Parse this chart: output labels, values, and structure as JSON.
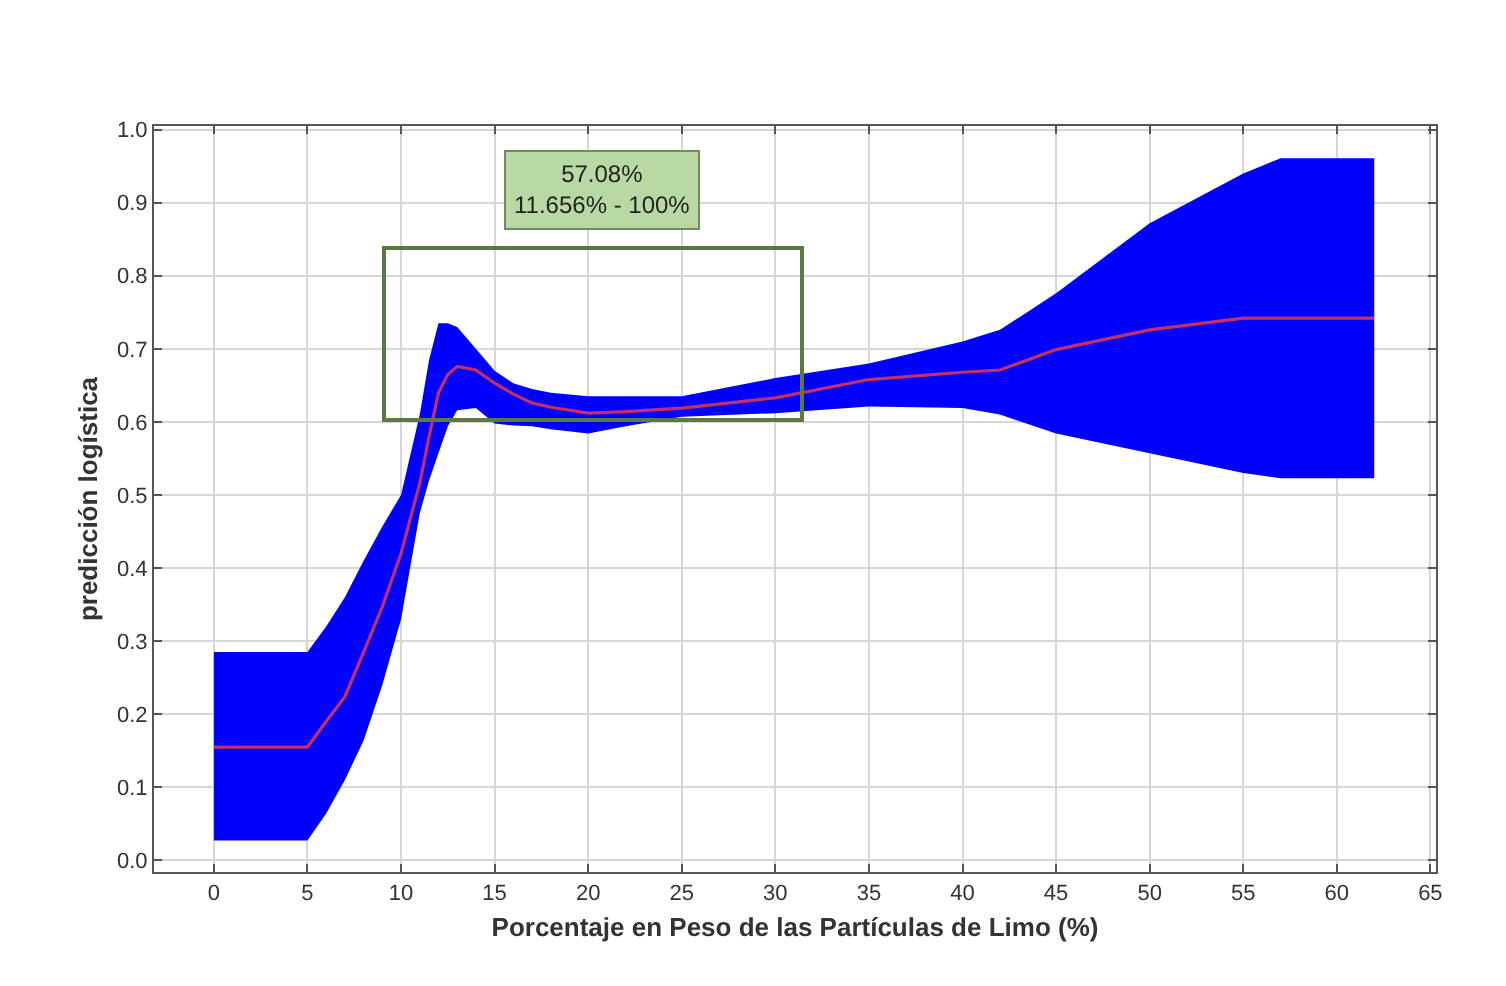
{
  "chart_data": {
    "type": "line",
    "xlabel": "Porcentaje en Peso de las Partículas de Limo (%)",
    "ylabel": "predicción logística",
    "annotations": [
      "57.08%\n11.656% - 100%"
    ],
    "xlim": [
      -3.2,
      65.3
    ],
    "xticks": [
      0,
      5,
      10,
      15,
      20,
      25,
      30,
      35,
      40,
      45,
      50,
      55,
      60,
      65
    ],
    "ylim": [
      -0.016,
      1.005
    ],
    "yticks": [
      {
        "value": 0,
        "label": "0.0"
      },
      0.1,
      0.2,
      0.3,
      0.4,
      0.5,
      0.6,
      0.7,
      0.8,
      0.9,
      {
        "value": 1,
        "label": "1.0"
      }
    ],
    "grid": true,
    "marker": "none",
    "line_style": "solid",
    "series": [
      {
        "color": "#0000ff",
        "x": [
          0,
          5,
          6,
          7,
          8,
          9,
          10,
          11,
          11.5,
          12,
          12.5,
          13,
          14,
          15,
          16,
          17,
          18,
          20,
          22,
          25,
          30,
          35,
          40,
          42,
          45,
          50,
          55,
          57,
          62
        ],
        "values": [
          null,
          null,
          null,
          null,
          null,
          null,
          null,
          null,
          null,
          null,
          null,
          null,
          null,
          null,
          null,
          null,
          null,
          null,
          null,
          null,
          null,
          null,
          null,
          null,
          null,
          null,
          null,
          null,
          null
        ],
        "upper": [
          0.285,
          0.285,
          0.32,
          0.36,
          0.41,
          0.457,
          0.5,
          0.61,
          0.685,
          0.735,
          0.735,
          0.73,
          0.7,
          0.67,
          0.653,
          0.645,
          0.64,
          0.635,
          0.635,
          0.635,
          0.66,
          0.68,
          0.71,
          0.726,
          0.776,
          0.872,
          0.94,
          0.961,
          0.961
        ],
        "lower": [
          0.027,
          0.027,
          0.064,
          0.11,
          0.164,
          0.24,
          0.33,
          0.475,
          0.52,
          0.557,
          0.594,
          0.616,
          0.619,
          0.598,
          0.595,
          0.594,
          0.59,
          0.584,
          0.594,
          0.607,
          0.612,
          0.621,
          0.619,
          0.61,
          0.584,
          0.557,
          0.53,
          0.523,
          0.523
        ]
      },
      {
        "color": "#c2306a",
        "x": [
          0,
          5,
          6,
          7,
          8,
          9,
          10,
          11,
          11.5,
          12,
          12.5,
          13,
          14,
          15,
          16,
          17,
          18,
          20,
          22,
          25,
          30,
          35,
          40,
          42,
          45,
          50,
          55,
          57,
          62
        ],
        "values": [
          0.155,
          0.155,
          0.19,
          0.224,
          0.285,
          0.347,
          0.42,
          0.516,
          0.58,
          0.64,
          0.665,
          0.676,
          0.671,
          0.653,
          0.638,
          0.626,
          0.62,
          0.612,
          0.614,
          0.619,
          0.633,
          0.658,
          0.668,
          0.671,
          0.699,
          0.726,
          0.742,
          0.742,
          0.742
        ]
      }
    ]
  }
}
